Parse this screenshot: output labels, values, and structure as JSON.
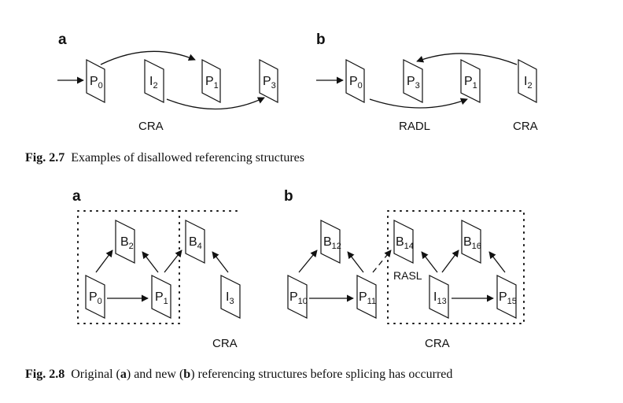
{
  "figure_2_7": {
    "panel_a": "a",
    "panel_b": "b",
    "a_frames": [
      {
        "letter": "P",
        "sub": "0"
      },
      {
        "letter": "I",
        "sub": "2"
      },
      {
        "letter": "P",
        "sub": "1"
      },
      {
        "letter": "P",
        "sub": "3"
      }
    ],
    "b_frames": [
      {
        "letter": "P",
        "sub": "0"
      },
      {
        "letter": "P",
        "sub": "3"
      },
      {
        "letter": "P",
        "sub": "1"
      },
      {
        "letter": "I",
        "sub": "2"
      }
    ],
    "a_label": "CRA",
    "b_label_radl": "RADL",
    "b_label_cra": "CRA",
    "caption_num": "Fig. 2.7",
    "caption_text": "Examples of disallowed referencing structures"
  },
  "figure_2_8": {
    "panel_a": "a",
    "panel_b": "b",
    "a_frames": [
      {
        "letter": "B",
        "sub": "2"
      },
      {
        "letter": "B",
        "sub": "4"
      },
      {
        "letter": "P",
        "sub": "0"
      },
      {
        "letter": "P",
        "sub": "1"
      },
      {
        "letter": "I",
        "sub": "3"
      }
    ],
    "b_frames": [
      {
        "letter": "B",
        "sub": "12"
      },
      {
        "letter": "B",
        "sub": "14"
      },
      {
        "letter": "B",
        "sub": "16"
      },
      {
        "letter": "P",
        "sub": "10"
      },
      {
        "letter": "P",
        "sub": "11"
      },
      {
        "letter": "I",
        "sub": "13"
      },
      {
        "letter": "P",
        "sub": "15"
      }
    ],
    "a_label": "CRA",
    "b_rasl": "RASL",
    "b_label": "CRA",
    "caption_num": "Fig. 2.8",
    "caption_pre": "Original (",
    "caption_a": "a",
    "caption_mid": ") and new (",
    "caption_b": "b",
    "caption_post": ") referencing structures before splicing has occurred"
  }
}
